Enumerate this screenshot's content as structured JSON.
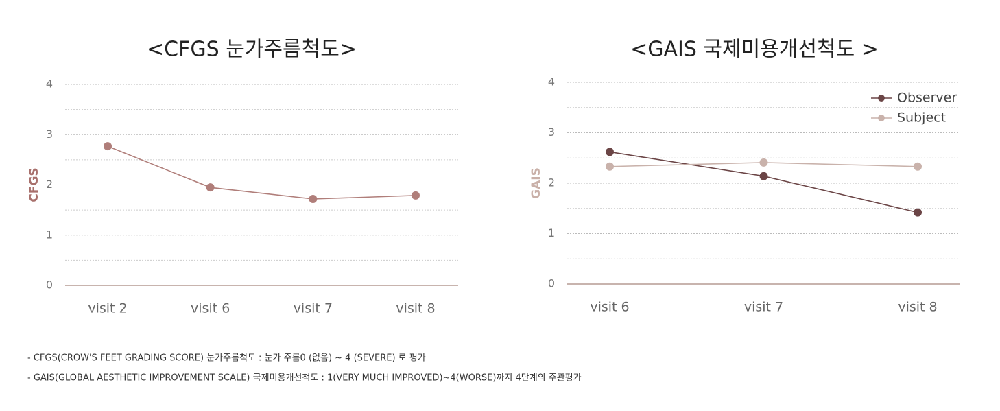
{
  "chart_data": [
    {
      "type": "line",
      "title": "<CFGS 눈가주름척도>",
      "y_label": "CFGS",
      "y_label_color": "#a8706c",
      "categories": [
        "visit 2",
        "visit 6",
        "visit 7",
        "visit 8"
      ],
      "series": [
        {
          "name": "CFGS",
          "color": "#b07e7a",
          "values": [
            2.77,
            1.95,
            1.72,
            1.79
          ]
        }
      ],
      "ylim": [
        0,
        4
      ],
      "yticks": [
        0,
        1,
        2,
        3,
        4
      ],
      "minor_yticks": [
        0.5,
        1.5,
        2.5,
        3.5
      ],
      "grid": true,
      "legend": false
    },
    {
      "type": "line",
      "title": "<GAIS 국제미용개선척도 >",
      "y_label": "GAIS",
      "y_label_color": "#c9b0a8",
      "categories": [
        "visit 6",
        "visit 7",
        "visit 8"
      ],
      "series": [
        {
          "name": "Observer",
          "color": "#6b4546",
          "values": [
            2.62,
            2.14,
            1.42
          ]
        },
        {
          "name": "Subject",
          "color": "#c9b2ab",
          "values": [
            2.33,
            2.41,
            2.33
          ]
        }
      ],
      "ylim": [
        0,
        4
      ],
      "yticks": [
        0,
        1,
        2,
        3,
        4
      ],
      "minor_yticks": [
        0.5,
        1.5,
        2.5,
        3.5
      ],
      "grid": true,
      "legend": "upper right"
    }
  ],
  "notes": [
    "- CFGS(CROW'S FEET GRADING SCORE) 눈가주름척도 : 눈가 주름0 (없음) ~ 4 (SEVERE) 로 평가",
    "- GAIS(GLOBAL AESTHETIC IMPROVEMENT SCALE) 국제미용개선척도 : 1(VERY MUCH IMPROVED)~4(WORSE)까지 4단계의 주관평가"
  ]
}
